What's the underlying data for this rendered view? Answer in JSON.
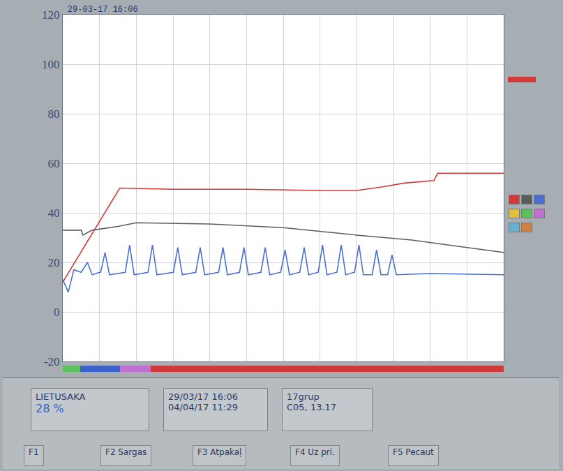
{
  "chart_data": {
    "type": "line",
    "title": "29-03-17 16:06",
    "xlim": [
      0,
      12
    ],
    "xticks": [
      0,
      1,
      2,
      3,
      4,
      5,
      6,
      7,
      8,
      9,
      10,
      11,
      12
    ],
    "ylim": [
      -20,
      120
    ],
    "yticks": [
      -20,
      0,
      20,
      40,
      60,
      80,
      100,
      120
    ],
    "grid": true,
    "tick_labels": "y",
    "series": [
      {
        "color": "#d23a3a",
        "x": [
          0,
          1.55,
          3,
          5,
          7,
          8,
          8.7,
          9.3,
          10.1,
          10.2,
          12
        ],
        "values": [
          12,
          50,
          49.5,
          49.5,
          49,
          49,
          50.5,
          52,
          53,
          56,
          56
        ]
      },
      {
        "color": "#5a5e5a",
        "x": [
          0,
          0.5,
          0.55,
          0.8,
          1.5,
          2,
          4,
          6,
          8,
          9.5,
          11,
          12
        ],
        "values": [
          33,
          33,
          31,
          33,
          34.5,
          36,
          35.5,
          34,
          31,
          29,
          26,
          24
        ]
      },
      {
        "color": "#4a6fd0",
        "x": [
          0,
          0.15,
          0.3,
          0.5,
          0.67,
          0.8,
          1.0,
          1.03,
          1.15,
          1.27,
          1.7,
          1.82,
          1.94,
          2.32,
          2.44,
          2.56,
          3.01,
          3.13,
          3.25,
          3.62,
          3.74,
          3.86,
          4.24,
          4.36,
          4.48,
          4.81,
          4.93,
          5.05,
          5.39,
          5.51,
          5.63,
          5.93,
          6.05,
          6.17,
          6.45,
          6.57,
          6.69,
          6.95,
          7.07,
          7.19,
          7.46,
          7.58,
          7.7,
          7.94,
          8.06,
          8.18,
          8.42,
          8.54,
          8.66,
          8.84,
          8.96,
          9.08,
          10,
          12
        ],
        "values": [
          13,
          8,
          17,
          16,
          20,
          15,
          16,
          16,
          24,
          15,
          16,
          27,
          15,
          16,
          27,
          15,
          16,
          26,
          15,
          16,
          26,
          15,
          16,
          26,
          15,
          16,
          26,
          15,
          16,
          26,
          15,
          16,
          25,
          15,
          16,
          26,
          15,
          16,
          27,
          15,
          16,
          27,
          15,
          16,
          27,
          15,
          15,
          25,
          15,
          15,
          23,
          15,
          15.5,
          15
        ]
      }
    ]
  },
  "screen": {
    "name": "LIETUSAKA",
    "level": "28 %",
    "dates": [
      "29/03/17 16:06",
      "04/04/17 11:29"
    ],
    "group": [
      "17grup",
      "C05, 13.17"
    ],
    "buttons": [
      "F1",
      "F2 Sargas",
      "F3 Atpakaļ",
      "F4 Uz pri.",
      "F5 Pecaut"
    ]
  }
}
